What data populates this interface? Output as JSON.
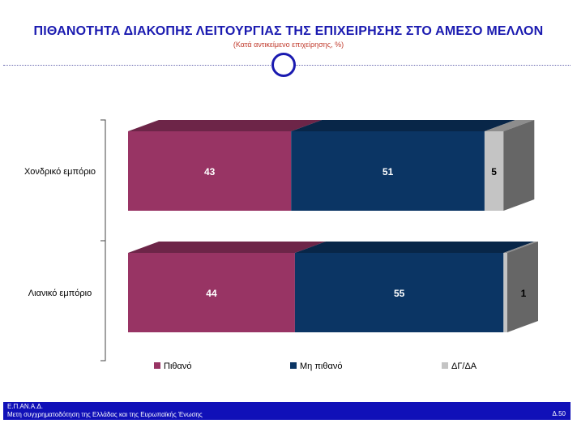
{
  "header": {
    "title": "ΠΙΘΑΝΟΤΗΤΑ ΔΙΑΚΟΠΗΣ ΛΕΙΤΟΥΡΓΙΑΣ ΤΗΣ ΕΠΙΧΕΙΡΗΣΗΣ ΣΤΟ ΑΜΕΣΟ ΜΕΛΛΟΝ",
    "subtitle": "(Κατά αντικείμενο επιχείρησης, %)"
  },
  "chart_data": {
    "type": "bar",
    "orientation": "horizontal",
    "stacked": true,
    "three_d": true,
    "categories": [
      "Χονδρικό εμπόριο",
      "Λιανικό εμπόριο"
    ],
    "series": [
      {
        "name": "Πιθανό",
        "values": [
          43,
          44
        ],
        "color": "#983464"
      },
      {
        "name": "Μη πιθανό",
        "values": [
          51,
          55
        ],
        "color": "#0b3564"
      },
      {
        "name": "ΔΓ/ΔΑ",
        "values": [
          5,
          1
        ],
        "color": "#c4c4c4"
      }
    ],
    "data_labels": [
      [
        "43",
        "51",
        "5"
      ],
      [
        "44",
        "55",
        "1"
      ]
    ],
    "legend_position": "bottom",
    "grid": false
  },
  "footer": {
    "org": "Ε.Π.ΑΝ.Α.Δ.",
    "caption": "Μετη συγχρηματοδότηση της Ελλάδας και της Ευρωπαϊκής Ένωσης",
    "page": "Δ.50"
  }
}
